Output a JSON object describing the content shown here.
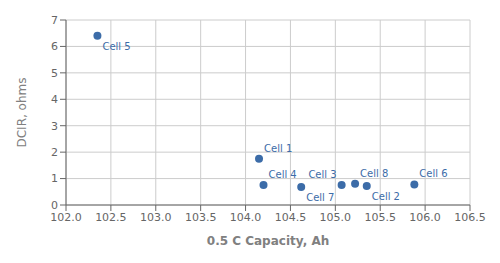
{
  "chart_data": {
    "type": "scatter",
    "xlabel": "0.5 C Capacity, Ah",
    "ylabel": "DCIR, ohms",
    "x": [
      102.35,
      104.15,
      104.2,
      104.62,
      105.07,
      105.22,
      105.35,
      105.88
    ],
    "values": [
      6.4,
      1.75,
      0.76,
      0.68,
      0.76,
      0.8,
      0.72,
      0.78
    ],
    "labels": [
      "Cell 5",
      "Cell 1",
      "Cell 4",
      "Cell 7",
      "Cell 3",
      "Cell 8",
      "Cell 2",
      "Cell 6"
    ],
    "color": "#3C6CA8",
    "xlim": [
      102,
      106.5
    ],
    "ylim": [
      0,
      7
    ],
    "xticks": [
      {
        "value": 102,
        "label": "102.0"
      },
      102.5,
      {
        "value": 103,
        "label": "103.0"
      },
      103.5,
      {
        "value": 104,
        "label": "104.0"
      },
      104.5,
      {
        "value": 105,
        "label": "105.0"
      },
      105.5,
      {
        "value": 106,
        "label": "106.0"
      },
      106.5
    ],
    "yticks": [
      0,
      1,
      2,
      3,
      4,
      5,
      6,
      7
    ],
    "grid": true
  }
}
